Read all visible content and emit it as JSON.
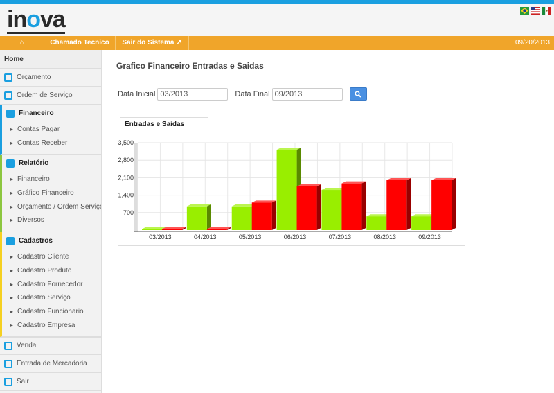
{
  "header": {
    "logo": "inova",
    "flags": [
      "brazil-flag",
      "usa-flag",
      "mexico-flag"
    ]
  },
  "nav": {
    "home_icon": "home-icon",
    "items": [
      "Chamado Tecnico",
      "Sair do Sistema"
    ],
    "date": "09/20/2013"
  },
  "sidebar": {
    "home": "Home",
    "top": [
      {
        "label": "Orçamento",
        "icon": "document-icon"
      },
      {
        "label": "Ordem de Serviço",
        "icon": "chart-doc-icon"
      }
    ],
    "sections": [
      {
        "label": "Financeiro",
        "icon": "grid-icon",
        "color": "#1a9fe0",
        "items": [
          "Contas Pagar",
          "Contas Receber"
        ]
      },
      {
        "label": "Relatório",
        "icon": "bar-chart-icon",
        "color": "#8cc63f",
        "items": [
          "Financeiro",
          "Gráfico Financeiro",
          "Orçamento / Ordem Serviço",
          "Diversos"
        ]
      },
      {
        "label": "Cadastros",
        "icon": "users-icon",
        "color": "#f5d020",
        "items": [
          "Cadastro Cliente",
          "Cadastro Produto",
          "Cadastro Fornecedor",
          "Cadastro Serviço",
          "Cadastro Funcionario",
          "Cadastro Empresa"
        ]
      }
    ],
    "bottom": [
      {
        "label": "Venda",
        "icon": "dollar-icon"
      },
      {
        "label": "Entrada de Mercadoria",
        "icon": "enter-icon"
      },
      {
        "label": "Sair",
        "icon": "exit-icon"
      }
    ]
  },
  "main": {
    "title": "Grafico Financeiro Entradas e Saidas",
    "data_inicial_label": "Data Inicial",
    "data_inicial": "03/2013",
    "data_final_label": "Data Final",
    "data_final": "09/2013",
    "search_icon": "search-icon",
    "tab": "Entradas e Saidas"
  },
  "chart_data": {
    "type": "bar",
    "categories": [
      "03/2013",
      "04/2013",
      "05/2013",
      "06/2013",
      "07/2013",
      "08/2013",
      "09/2013"
    ],
    "series": [
      {
        "values": [
          0,
          950,
          950,
          3220,
          1610,
          550,
          550
        ],
        "color": "#99ee00"
      },
      {
        "values": [
          0,
          0,
          1100,
          1750,
          1870,
          2000,
          2000
        ],
        "color": "#ff0000"
      }
    ],
    "yticks": [
      "700",
      "1,400",
      "2,100",
      "2,800",
      "3,500"
    ],
    "ylim": [
      0,
      3500
    ],
    "grid": true
  }
}
